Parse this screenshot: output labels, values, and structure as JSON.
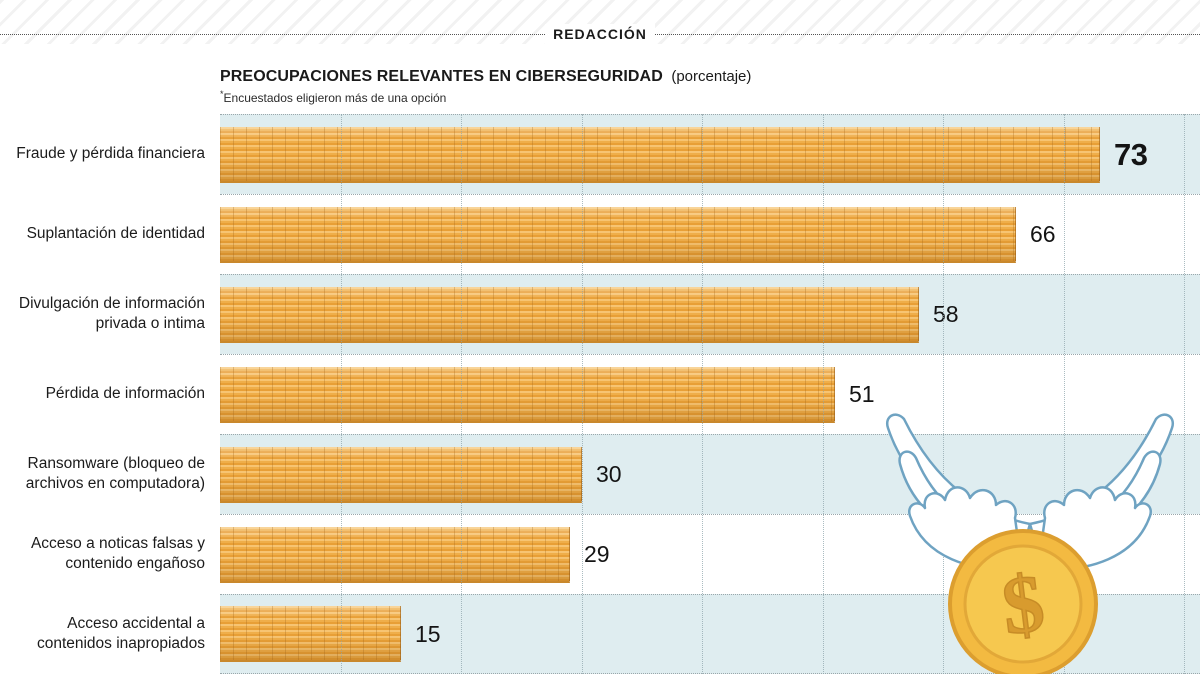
{
  "page": {
    "kicker": "REDACCIÓN"
  },
  "chart": {
    "title": "PREOCUPACIONES RELEVANTES EN CIBERSEGURIDAD",
    "title_note": "(porcentaje)",
    "footnote_mark": "*",
    "footnote": "Encuestados eligieron más de una opción"
  },
  "chart_data": {
    "type": "bar",
    "orientation": "horizontal",
    "title": "PREOCUPACIONES RELEVANTES EN CIBERSEGURIDAD (porcentaje)",
    "subtitle": "*Encuestados eligieron más de una opción",
    "categories": [
      "Fraude y pérdida financiera",
      "Suplantación de identidad",
      "Divulgación de información privada o intima",
      "Pérdida de información",
      "Ransomware (bloqueo de archivos en computadora)",
      "Acceso a noticas falsas y contenido engañoso",
      "Acceso accidental a contenidos inapropiados"
    ],
    "values": [
      73,
      66,
      58,
      51,
      30,
      29,
      15
    ],
    "xlim": [
      0,
      80
    ],
    "grid_interval": 10,
    "grid": "vertical-dotted",
    "legend": false,
    "value_labels": "end-of-bar",
    "emphasized_value_index": 0,
    "row_banding": "alternating-light-blue"
  },
  "illustration": {
    "name": "winged-dollar-coin",
    "symbol": "$"
  },
  "colors": {
    "bar_gold_light": "#F7C472",
    "bar_gold_mid": "#EFAE4A",
    "bar_gold_dark": "#E89F36",
    "band_blue": "#DFEDF0",
    "grid_dot": "#8FA6AD",
    "text": "#1A1A1A"
  }
}
